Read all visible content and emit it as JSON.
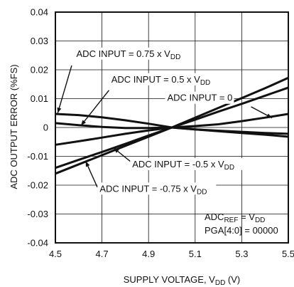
{
  "chart_data": {
    "type": "line",
    "title": "",
    "xlabel": "SUPPLY VOLTAGE, V",
    "xlabel_sub": "DD",
    "xlabel_tail": " (V)",
    "ylabel": "ADC OUTPUT ERROR (%FS)",
    "xlim": [
      4.5,
      5.5
    ],
    "ylim": [
      -0.04,
      0.04
    ],
    "x_ticks": [
      4.5,
      4.7,
      4.9,
      5.1,
      5.3,
      5.5
    ],
    "x_tick_labels": [
      "4.5",
      "4.7",
      "4.9",
      "5.1",
      "5.3",
      "5.5"
    ],
    "y_ticks": [
      0.04,
      0.03,
      0.02,
      0.01,
      0,
      -0.01,
      -0.02,
      -0.03,
      -0.04
    ],
    "y_tick_labels": [
      "0.04",
      "0.03",
      "0.02",
      "0.01",
      "0",
      "-0.01",
      "-0.02",
      "-0.03",
      "-0.04"
    ],
    "grid": true,
    "x": [
      4.5,
      4.6,
      4.7,
      4.8,
      4.9,
      5.0,
      5.1,
      5.2,
      5.3,
      5.4,
      5.5
    ],
    "series": [
      {
        "name": "ADC INPUT = 0.75 x V",
        "name_sub": "DD",
        "values": [
          0.0047,
          0.0043,
          0.0035,
          0.0025,
          0.0013,
          0.0,
          -0.0007,
          -0.0013,
          -0.0019,
          -0.0025,
          -0.0032
        ]
      },
      {
        "name": "ADC INPUT = 0.5 x V",
        "name_sub": "DD",
        "values": [
          0.0015,
          0.0008,
          0.0002,
          -0.0002,
          -0.0002,
          0.0,
          -0.0007,
          -0.0011,
          -0.0015,
          -0.0019,
          -0.0022
        ]
      },
      {
        "name": "ADC INPUT = 0",
        "name_sub": "",
        "values": [
          -0.006,
          -0.0048,
          -0.0035,
          -0.0022,
          -0.001,
          0.0,
          0.0005,
          0.0011,
          0.0022,
          0.0034,
          0.0047
        ]
      },
      {
        "name": "ADC INPUT = -0.5 x V",
        "name_sub": "DD",
        "values": [
          -0.014,
          -0.0112,
          -0.0085,
          -0.0057,
          -0.0028,
          0.0,
          0.0027,
          0.0055,
          0.0082,
          0.011,
          0.0138
        ]
      },
      {
        "name": "ADC INPUT = -0.75 x V",
        "name_sub": "DD",
        "values": [
          -0.016,
          -0.0128,
          -0.0096,
          -0.0064,
          -0.0032,
          0.0,
          0.0034,
          0.0068,
          0.0102,
          0.0136,
          0.0172
        ]
      }
    ],
    "conditions": {
      "line1": "ADC",
      "line1_sub": "REF",
      "line1_tail": " = V",
      "line1_tail_sub": "DD",
      "line2": "PGA[4:0] = 00000"
    }
  }
}
